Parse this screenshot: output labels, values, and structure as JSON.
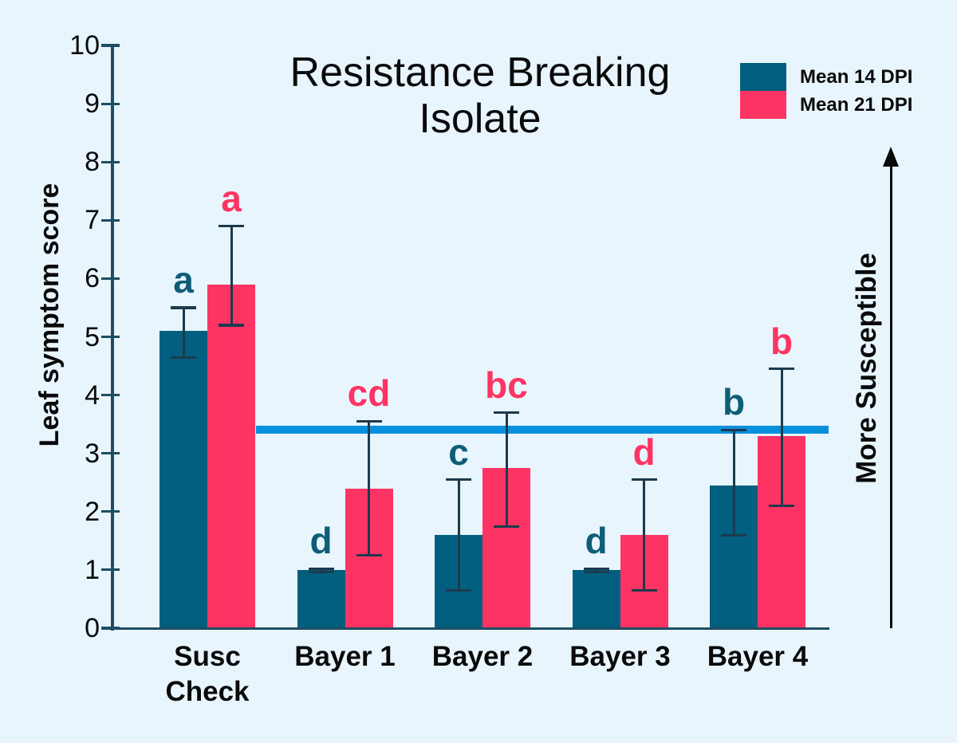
{
  "background": "#E8F5FC",
  "title": {
    "line1": "Resistance Breaking",
    "line2": "Isolate"
  },
  "ylabel": "Leaf symptom score",
  "right_annotation": "More Susceptible",
  "legend": {
    "items": [
      {
        "label": "Mean 14 DPI",
        "color": "#035F7F"
      },
      {
        "label": "Mean 21 DPI",
        "color": "#FD3463"
      }
    ]
  },
  "colors": {
    "axis": "#1E4D63",
    "error_bar": "#1C3A4E",
    "reference_line": "#0990DC",
    "text": "#0A0A0A"
  },
  "chart_data": {
    "type": "bar",
    "title": "Resistance Breaking Isolate",
    "ylabel": "Leaf symptom score",
    "ylim": [
      0,
      10
    ],
    "yticks": [
      0,
      1,
      2,
      3,
      4,
      5,
      6,
      7,
      8,
      9,
      10
    ],
    "grid": false,
    "legend_position": "top-right",
    "categories": [
      "Susc Check",
      "Bayer 1",
      "Bayer 2",
      "Bayer 3",
      "Bayer 4"
    ],
    "category_label_lines": [
      "Susc\nCheck",
      "Bayer 1",
      "Bayer 2",
      "Bayer 3",
      "Bayer 4"
    ],
    "series": [
      {
        "name": "Mean 14 DPI",
        "color": "#035F7F",
        "letter_color": "#0E5D78",
        "values": [
          5.1,
          1.0,
          1.6,
          1.0,
          2.45
        ],
        "err_low": [
          4.65,
          0.97,
          0.65,
          0.97,
          1.6
        ],
        "err_high": [
          5.5,
          1.02,
          2.55,
          1.02,
          3.4
        ],
        "sig_letters": [
          "a",
          "d",
          "c",
          "d",
          "b"
        ]
      },
      {
        "name": "Mean 21 DPI",
        "color": "#FD3463",
        "letter_color": "#FD3463",
        "values": [
          5.9,
          2.4,
          2.75,
          1.6,
          3.3
        ],
        "err_low": [
          5.2,
          1.25,
          1.75,
          0.65,
          2.1
        ],
        "err_high": [
          6.9,
          3.55,
          3.7,
          2.55,
          4.45
        ],
        "sig_letters": [
          "a",
          "cd",
          "bc",
          "d",
          "b"
        ]
      }
    ],
    "reference_line": {
      "value": 3.4,
      "color": "#0990DC"
    },
    "right_axis_annotation": {
      "label": "More Susceptible",
      "direction": "up"
    }
  }
}
